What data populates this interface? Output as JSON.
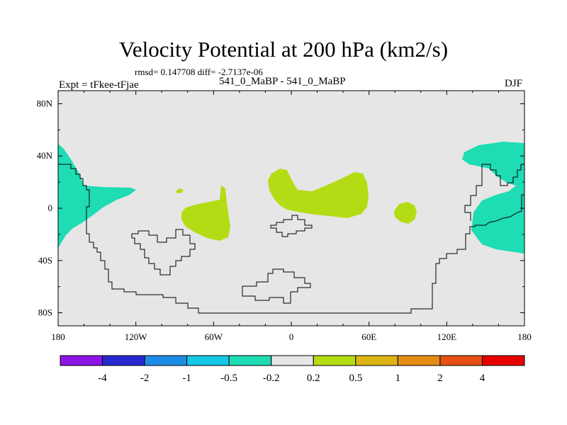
{
  "title": "Velocity Potential at 200 hPa (km2/s)",
  "stats": "rmsd= 0.147708 diff= -2.7137e-06",
  "left_label": "Expt = tFkee-tFjae",
  "center_label": "541_0_MaBP - 541_0_MaBP",
  "right_label": "DJF",
  "map": {
    "projection": "cylindrical equidistant",
    "lon_range": [
      -180,
      180
    ],
    "lat_range": [
      -90,
      90
    ],
    "background_color": "#e6e6e6",
    "x_ticks": [
      "180",
      "120W",
      "60W",
      "0",
      "60E",
      "120E",
      "180"
    ],
    "y_ticks": [
      "80N",
      "40N",
      "0",
      "40S",
      "80S"
    ]
  },
  "colorbar": {
    "colors": [
      "#8c14e6",
      "#2828d2",
      "#1e8ce6",
      "#14c8e6",
      "#1edcb4",
      "#e6e6e6",
      "#b4dc14",
      "#dcb414",
      "#e68c14",
      "#e65014",
      "#e60000"
    ],
    "labels": [
      "-4",
      "-2",
      "-1",
      "-0.5",
      "-0.2",
      "0.2",
      "0.5",
      "1",
      "2",
      "4"
    ]
  }
}
